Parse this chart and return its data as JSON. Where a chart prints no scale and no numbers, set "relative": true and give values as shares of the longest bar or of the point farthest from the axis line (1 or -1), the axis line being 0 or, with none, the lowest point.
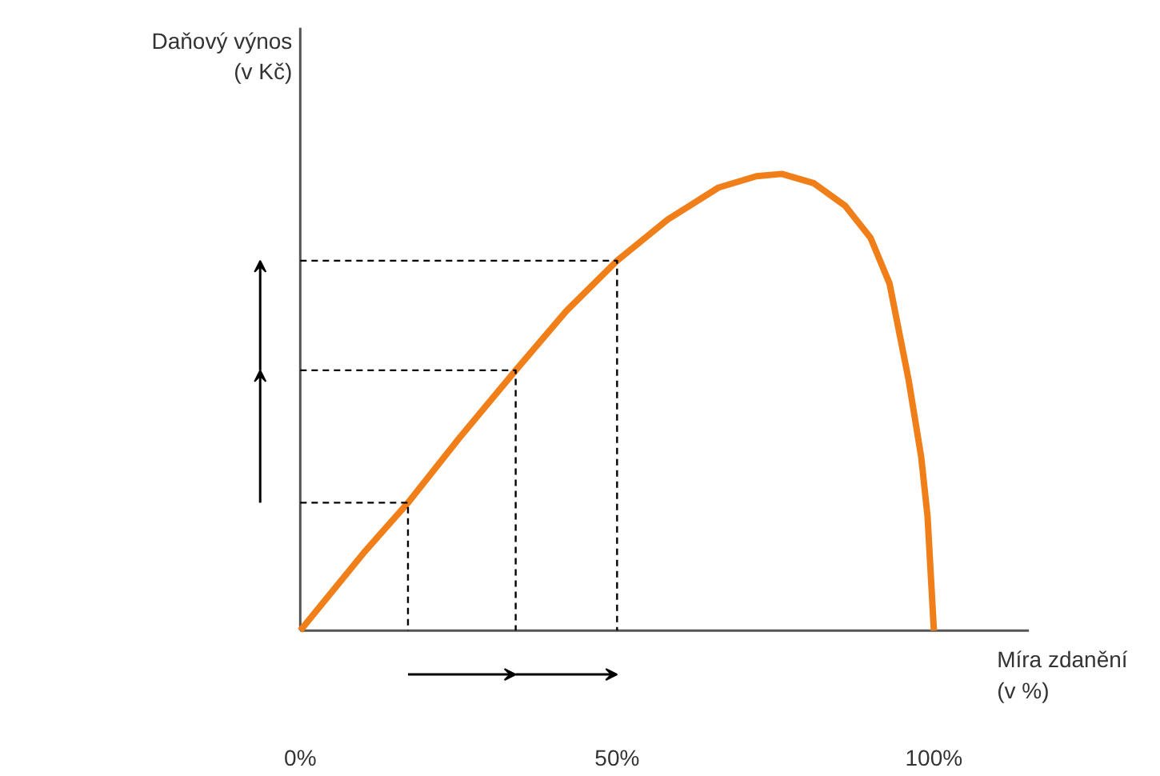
{
  "chart_data": {
    "type": "line",
    "relative": true,
    "xlabel": "Míra zdanění\n(v %)",
    "ylabel": "Daňový výnos\n(v Kč)",
    "xlim": [
      0,
      115
    ],
    "xticks": [
      {
        "value": 0,
        "label": "0%"
      },
      {
        "value": 50,
        "label": "50%"
      },
      {
        "value": 100,
        "label": "100%"
      }
    ],
    "grid": false,
    "marker": "none",
    "series": [
      {
        "color": "#f07f1a",
        "line_style": "solid",
        "x": [
          0,
          10,
          17,
          25,
          34,
          42,
          50,
          58,
          66,
          72,
          76,
          81,
          86,
          90,
          93,
          96,
          98,
          99,
          100
        ],
        "values": [
          0,
          0.17,
          0.28,
          0.42,
          0.57,
          0.7,
          0.81,
          0.9,
          0.97,
          0.995,
          1,
          0.98,
          0.93,
          0.86,
          0.76,
          0.55,
          0.38,
          0.25,
          0
        ]
      },
      {
        "color": "#000000",
        "line_style": "dashed",
        "x": [
          0,
          17,
          17
        ],
        "values": [
          0.28,
          0.28,
          0
        ]
      },
      {
        "color": "#000000",
        "line_style": "dashed",
        "x": [
          0,
          34,
          34
        ],
        "values": [
          0.57,
          0.57,
          0
        ]
      },
      {
        "color": "#000000",
        "line_style": "dashed",
        "x": [
          0,
          50,
          50
        ],
        "values": [
          0.81,
          0.81,
          0
        ]
      }
    ]
  }
}
